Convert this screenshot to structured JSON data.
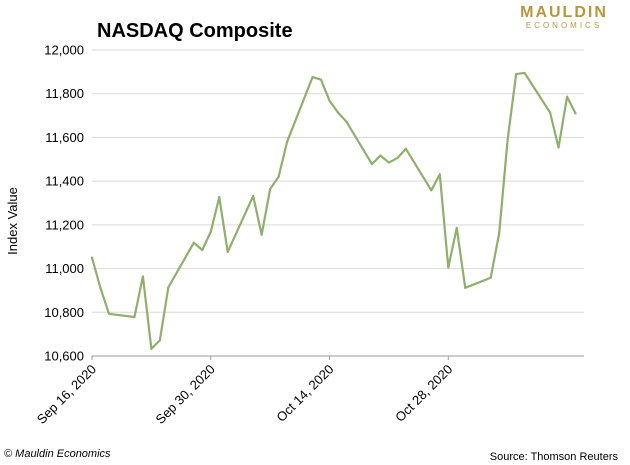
{
  "header": {
    "title": "NASDAQ Composite",
    "logo_line1": "MAULDIN",
    "logo_line2": "ECONOMICS"
  },
  "footer": {
    "copyright": "© Mauldin Economics",
    "source": "Source: Thomson Reuters"
  },
  "colors": {
    "line": "#8faf6c",
    "grid": "#d9d9d9",
    "logo": "#b8963f"
  },
  "chart_data": {
    "type": "line",
    "title": "NASDAQ Composite",
    "xlabel": "",
    "ylabel": "Index Value",
    "ylim": [
      10600,
      12000
    ],
    "yticks": [
      10600,
      10800,
      11000,
      11200,
      11400,
      11600,
      11800,
      12000
    ],
    "ytick_labels": [
      "10,600",
      "10,800",
      "11,000",
      "11,200",
      "11,400",
      "11,600",
      "11,800",
      "12,000"
    ],
    "xlim": [
      "2020-09-16",
      "2020-11-13"
    ],
    "xticks": [
      "2020-09-16",
      "2020-09-30",
      "2020-10-14",
      "2020-10-28"
    ],
    "xtick_labels": [
      "Sep 16, 2020",
      "Sep 30, 2020",
      "Oct 14, 2020",
      "Oct 28, 2020"
    ],
    "grid": true,
    "series": [
      {
        "x": [
          "2020-09-16",
          "2020-09-17",
          "2020-09-18",
          "2020-09-21",
          "2020-09-22",
          "2020-09-23",
          "2020-09-24",
          "2020-09-25",
          "2020-09-28",
          "2020-09-29",
          "2020-09-30",
          "2020-10-01",
          "2020-10-02",
          "2020-10-05",
          "2020-10-06",
          "2020-10-07",
          "2020-10-08",
          "2020-10-09",
          "2020-10-12",
          "2020-10-13",
          "2020-10-14",
          "2020-10-15",
          "2020-10-16",
          "2020-10-19",
          "2020-10-20",
          "2020-10-21",
          "2020-10-22",
          "2020-10-23",
          "2020-10-26",
          "2020-10-27",
          "2020-10-28",
          "2020-10-29",
          "2020-10-30",
          "2020-11-02",
          "2020-11-03",
          "2020-11-04",
          "2020-11-05",
          "2020-11-06",
          "2020-11-09",
          "2020-11-10",
          "2020-11-11",
          "2020-11-12"
        ],
        "values": [
          11050,
          10911,
          10793,
          10778,
          10964,
          10633,
          10672,
          10914,
          11118,
          11085,
          11168,
          11327,
          11076,
          11332,
          11155,
          11364,
          11420,
          11580,
          11876,
          11864,
          11768,
          11714,
          11672,
          11478,
          11517,
          11485,
          11506,
          11548,
          11358,
          11431,
          11005,
          11186,
          10912,
          10958,
          11161,
          11591,
          11890,
          11895,
          11714,
          11554,
          11786,
          11710
        ]
      }
    ]
  }
}
